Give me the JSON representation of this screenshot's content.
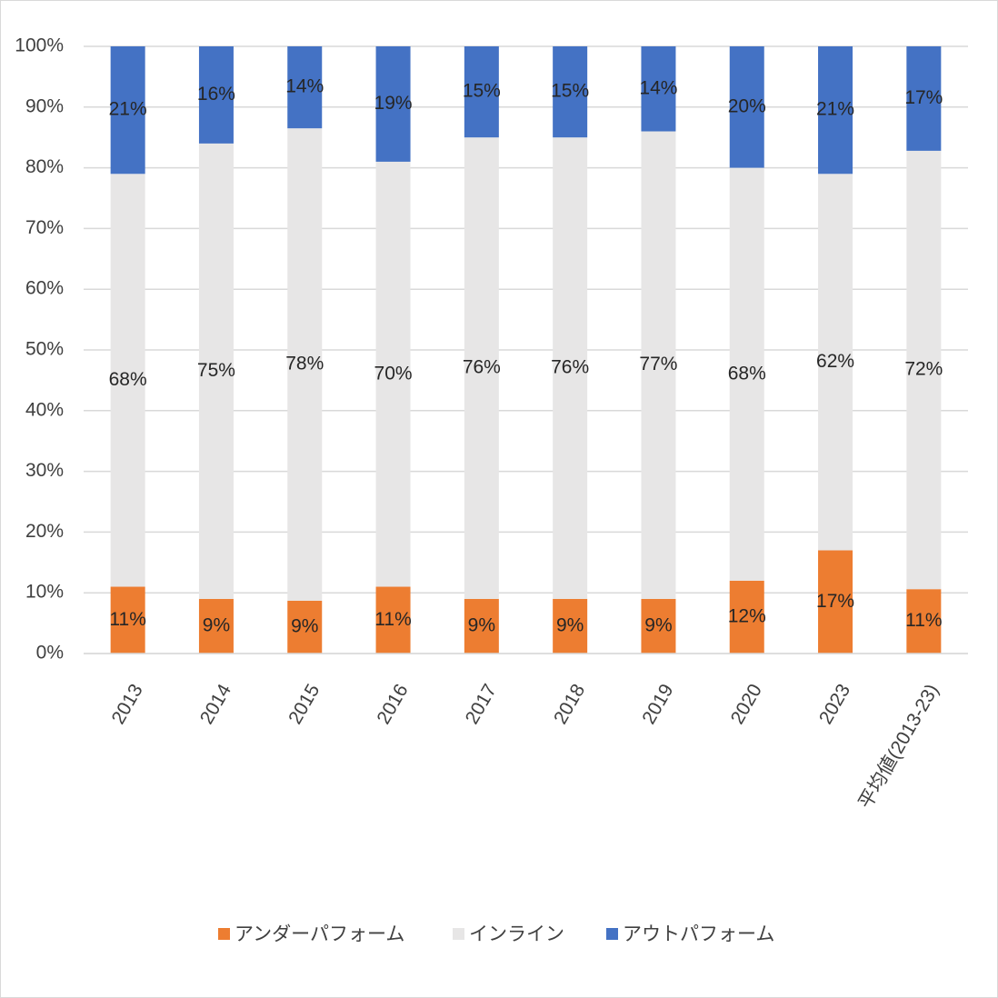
{
  "chart_data": {
    "type": "stacked_bar_100",
    "categories": [
      "2013",
      "2014",
      "2015",
      "2016",
      "2017",
      "2018",
      "2019",
      "2020",
      "2023",
      "平均値(2013-23)"
    ],
    "series": [
      {
        "name": "アンダーパフォーム",
        "color": "#ed7d31",
        "values": [
          11,
          9,
          8.7,
          11,
          9,
          9,
          9,
          12,
          17,
          10.6
        ],
        "value_labels": [
          "11%",
          "9%",
          "9%",
          "11%",
          "9%",
          "9%",
          "9%",
          "12%",
          "17%",
          "11%"
        ]
      },
      {
        "name": "インライン",
        "color": "#e7e6e6",
        "values": [
          68,
          75,
          77.8,
          70,
          76,
          76,
          77,
          68,
          62,
          72.2
        ],
        "value_labels": [
          "68%",
          "75%",
          "78%",
          "70%",
          "76%",
          "76%",
          "77%",
          "68%",
          "62%",
          "72%"
        ]
      },
      {
        "name": "アウトパフォーム",
        "color": "#4472c4",
        "values": [
          21,
          16,
          13.5,
          19,
          15,
          15,
          14,
          20,
          21,
          17.2
        ],
        "value_labels": [
          "21%",
          "16%",
          "14%",
          "19%",
          "15%",
          "15%",
          "14%",
          "20%",
          "21%",
          "17%"
        ]
      }
    ],
    "ylim": [
      0,
      100
    ],
    "yticks": [
      {
        "value": 0,
        "label": "0%"
      },
      {
        "value": 10,
        "label": "10%"
      },
      {
        "value": 20,
        "label": "20%"
      },
      {
        "value": 30,
        "label": "30%"
      },
      {
        "value": 40,
        "label": "40%"
      },
      {
        "value": 50,
        "label": "50%"
      },
      {
        "value": 60,
        "label": "60%"
      },
      {
        "value": 70,
        "label": "70%"
      },
      {
        "value": 80,
        "label": "80%"
      },
      {
        "value": 90,
        "label": "90%"
      },
      {
        "value": 100,
        "label": "100%"
      }
    ],
    "grid": true,
    "legend": "bottom"
  }
}
